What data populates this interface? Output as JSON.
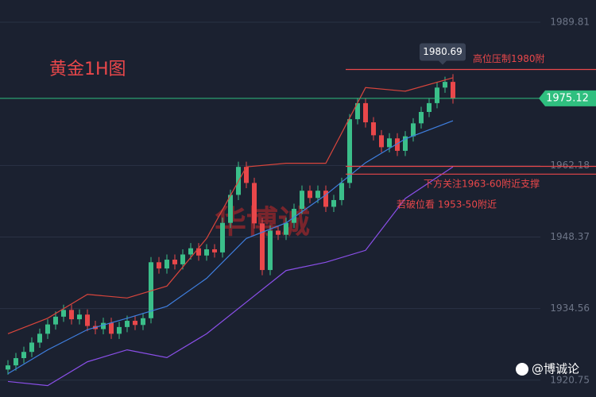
{
  "chart_data": {
    "type": "candlestick",
    "title": "黄金1H图",
    "watermark": "华博诚",
    "brand": "@博诚论",
    "ylim": [
      1917.5,
      1994.1
    ],
    "yticks": [
      1989.81,
      1962.18,
      1948.37,
      1934.56,
      1920.75
    ],
    "up_color": "#3bbf8a",
    "down_color": "#e9474a",
    "open": [
      1922.8,
      1923.6,
      1925.0,
      1926.2,
      1928.0,
      1929.7,
      1931.5,
      1933.0,
      1934.3,
      1932.5,
      1933.4,
      1931.2,
      1930.6,
      1931.8,
      1929.7,
      1931.0,
      1932.2,
      1931.4,
      1932.7,
      1943.5,
      1942.3,
      1944.0,
      1943.1,
      1945.0,
      1946.2,
      1944.8,
      1946.0,
      1945.4,
      1951.1,
      1956.5,
      1961.9,
      1958.8,
      1951.0,
      1942.0,
      1949.6,
      1948.8,
      1951.1,
      1953.8,
      1957.3,
      1955.9,
      1957.3,
      1954.2,
      1955.5,
      1958.8,
      1971.1,
      1974.2,
      1970.5,
      1968.0,
      1965.7,
      1967.4,
      1965.0,
      1967.8,
      1970.3,
      1972.5,
      1974.2,
      1977.2,
      1978.3
    ],
    "high": [
      1924.6,
      1926.0,
      1927.2,
      1929.0,
      1930.7,
      1932.5,
      1934.0,
      1935.3,
      1935.3,
      1934.4,
      1934.4,
      1932.2,
      1932.8,
      1932.8,
      1932.0,
      1933.2,
      1933.2,
      1933.7,
      1944.5,
      1944.5,
      1945.0,
      1945.0,
      1946.0,
      1947.2,
      1947.2,
      1947.0,
      1947.0,
      1952.1,
      1957.5,
      1962.9,
      1962.9,
      1959.8,
      1952.0,
      1950.6,
      1950.6,
      1952.1,
      1954.8,
      1958.3,
      1958.3,
      1958.3,
      1958.3,
      1956.5,
      1959.8,
      1972.1,
      1975.2,
      1975.2,
      1971.5,
      1969.0,
      1968.4,
      1968.4,
      1968.8,
      1971.3,
      1973.5,
      1975.2,
      1978.2,
      1979.3,
      1979.8
    ],
    "low": [
      1921.8,
      1922.6,
      1924.0,
      1925.2,
      1927.0,
      1928.7,
      1930.5,
      1932.0,
      1931.5,
      1931.5,
      1930.2,
      1929.6,
      1929.6,
      1928.7,
      1928.7,
      1930.0,
      1930.4,
      1930.4,
      1931.7,
      1941.3,
      1941.3,
      1942.1,
      1942.1,
      1944.0,
      1943.8,
      1943.8,
      1944.4,
      1944.4,
      1950.1,
      1955.5,
      1957.8,
      1950.0,
      1941.0,
      1941.0,
      1947.8,
      1947.8,
      1950.1,
      1952.8,
      1954.9,
      1954.9,
      1953.2,
      1953.2,
      1954.5,
      1957.8,
      1970.1,
      1969.5,
      1967.0,
      1964.7,
      1964.7,
      1964.0,
      1964.0,
      1966.8,
      1969.3,
      1971.5,
      1973.2,
      1976.2,
      1974.1
    ],
    "close": [
      1923.6,
      1925.0,
      1926.2,
      1928.0,
      1929.7,
      1931.5,
      1933.0,
      1934.3,
      1932.5,
      1933.4,
      1931.2,
      1930.6,
      1931.8,
      1929.7,
      1931.0,
      1932.2,
      1931.4,
      1932.7,
      1943.5,
      1942.3,
      1944.0,
      1943.1,
      1945.0,
      1946.2,
      1944.8,
      1946.0,
      1945.4,
      1951.1,
      1956.5,
      1961.9,
      1958.8,
      1951.0,
      1942.0,
      1949.6,
      1948.8,
      1951.1,
      1953.8,
      1957.3,
      1955.9,
      1957.3,
      1954.2,
      1955.5,
      1958.8,
      1971.1,
      1974.2,
      1970.5,
      1968.0,
      1965.7,
      1967.4,
      1965.0,
      1967.8,
      1970.3,
      1972.5,
      1974.2,
      1977.2,
      1978.3,
      1975.12
    ],
    "bands": [
      {
        "color": "#d9453c",
        "x": [
          0,
          5,
          10,
          15,
          20,
          25,
          30,
          35,
          40,
          45,
          50,
          56
        ],
        "values": [
          1929.7,
          1932.7,
          1937.3,
          1936.6,
          1938.9,
          1948.1,
          1961.9,
          1962.6,
          1962.6,
          1977.2,
          1976.5,
          1979.1
        ]
      },
      {
        "color": "#3f7fe0",
        "x": [
          0,
          5,
          10,
          15,
          20,
          25,
          30,
          35,
          40,
          45,
          50,
          56
        ],
        "values": [
          1922.0,
          1926.6,
          1930.5,
          1932.7,
          1935.0,
          1940.4,
          1948.1,
          1951.1,
          1956.5,
          1962.7,
          1967.3,
          1970.8
        ]
      },
      {
        "color": "#8a4fe8",
        "x": [
          0,
          5,
          10,
          15,
          20,
          25,
          30,
          35,
          40,
          45,
          50,
          56
        ],
        "values": [
          1920.5,
          1919.7,
          1924.3,
          1926.6,
          1925.1,
          1929.7,
          1935.8,
          1941.9,
          1943.5,
          1945.8,
          1955.8,
          1961.9
        ]
      }
    ],
    "hlines": [
      1980.69,
      1962.0,
      1960.5
    ],
    "hline_color": "#e9474a",
    "last_price": 1975.12,
    "last_price_color": "#2fbf7f",
    "annotations": [
      "高位压制1980附",
      "下方关注1963-60附近支撑",
      "若破位看 1953-50附近"
    ]
  }
}
